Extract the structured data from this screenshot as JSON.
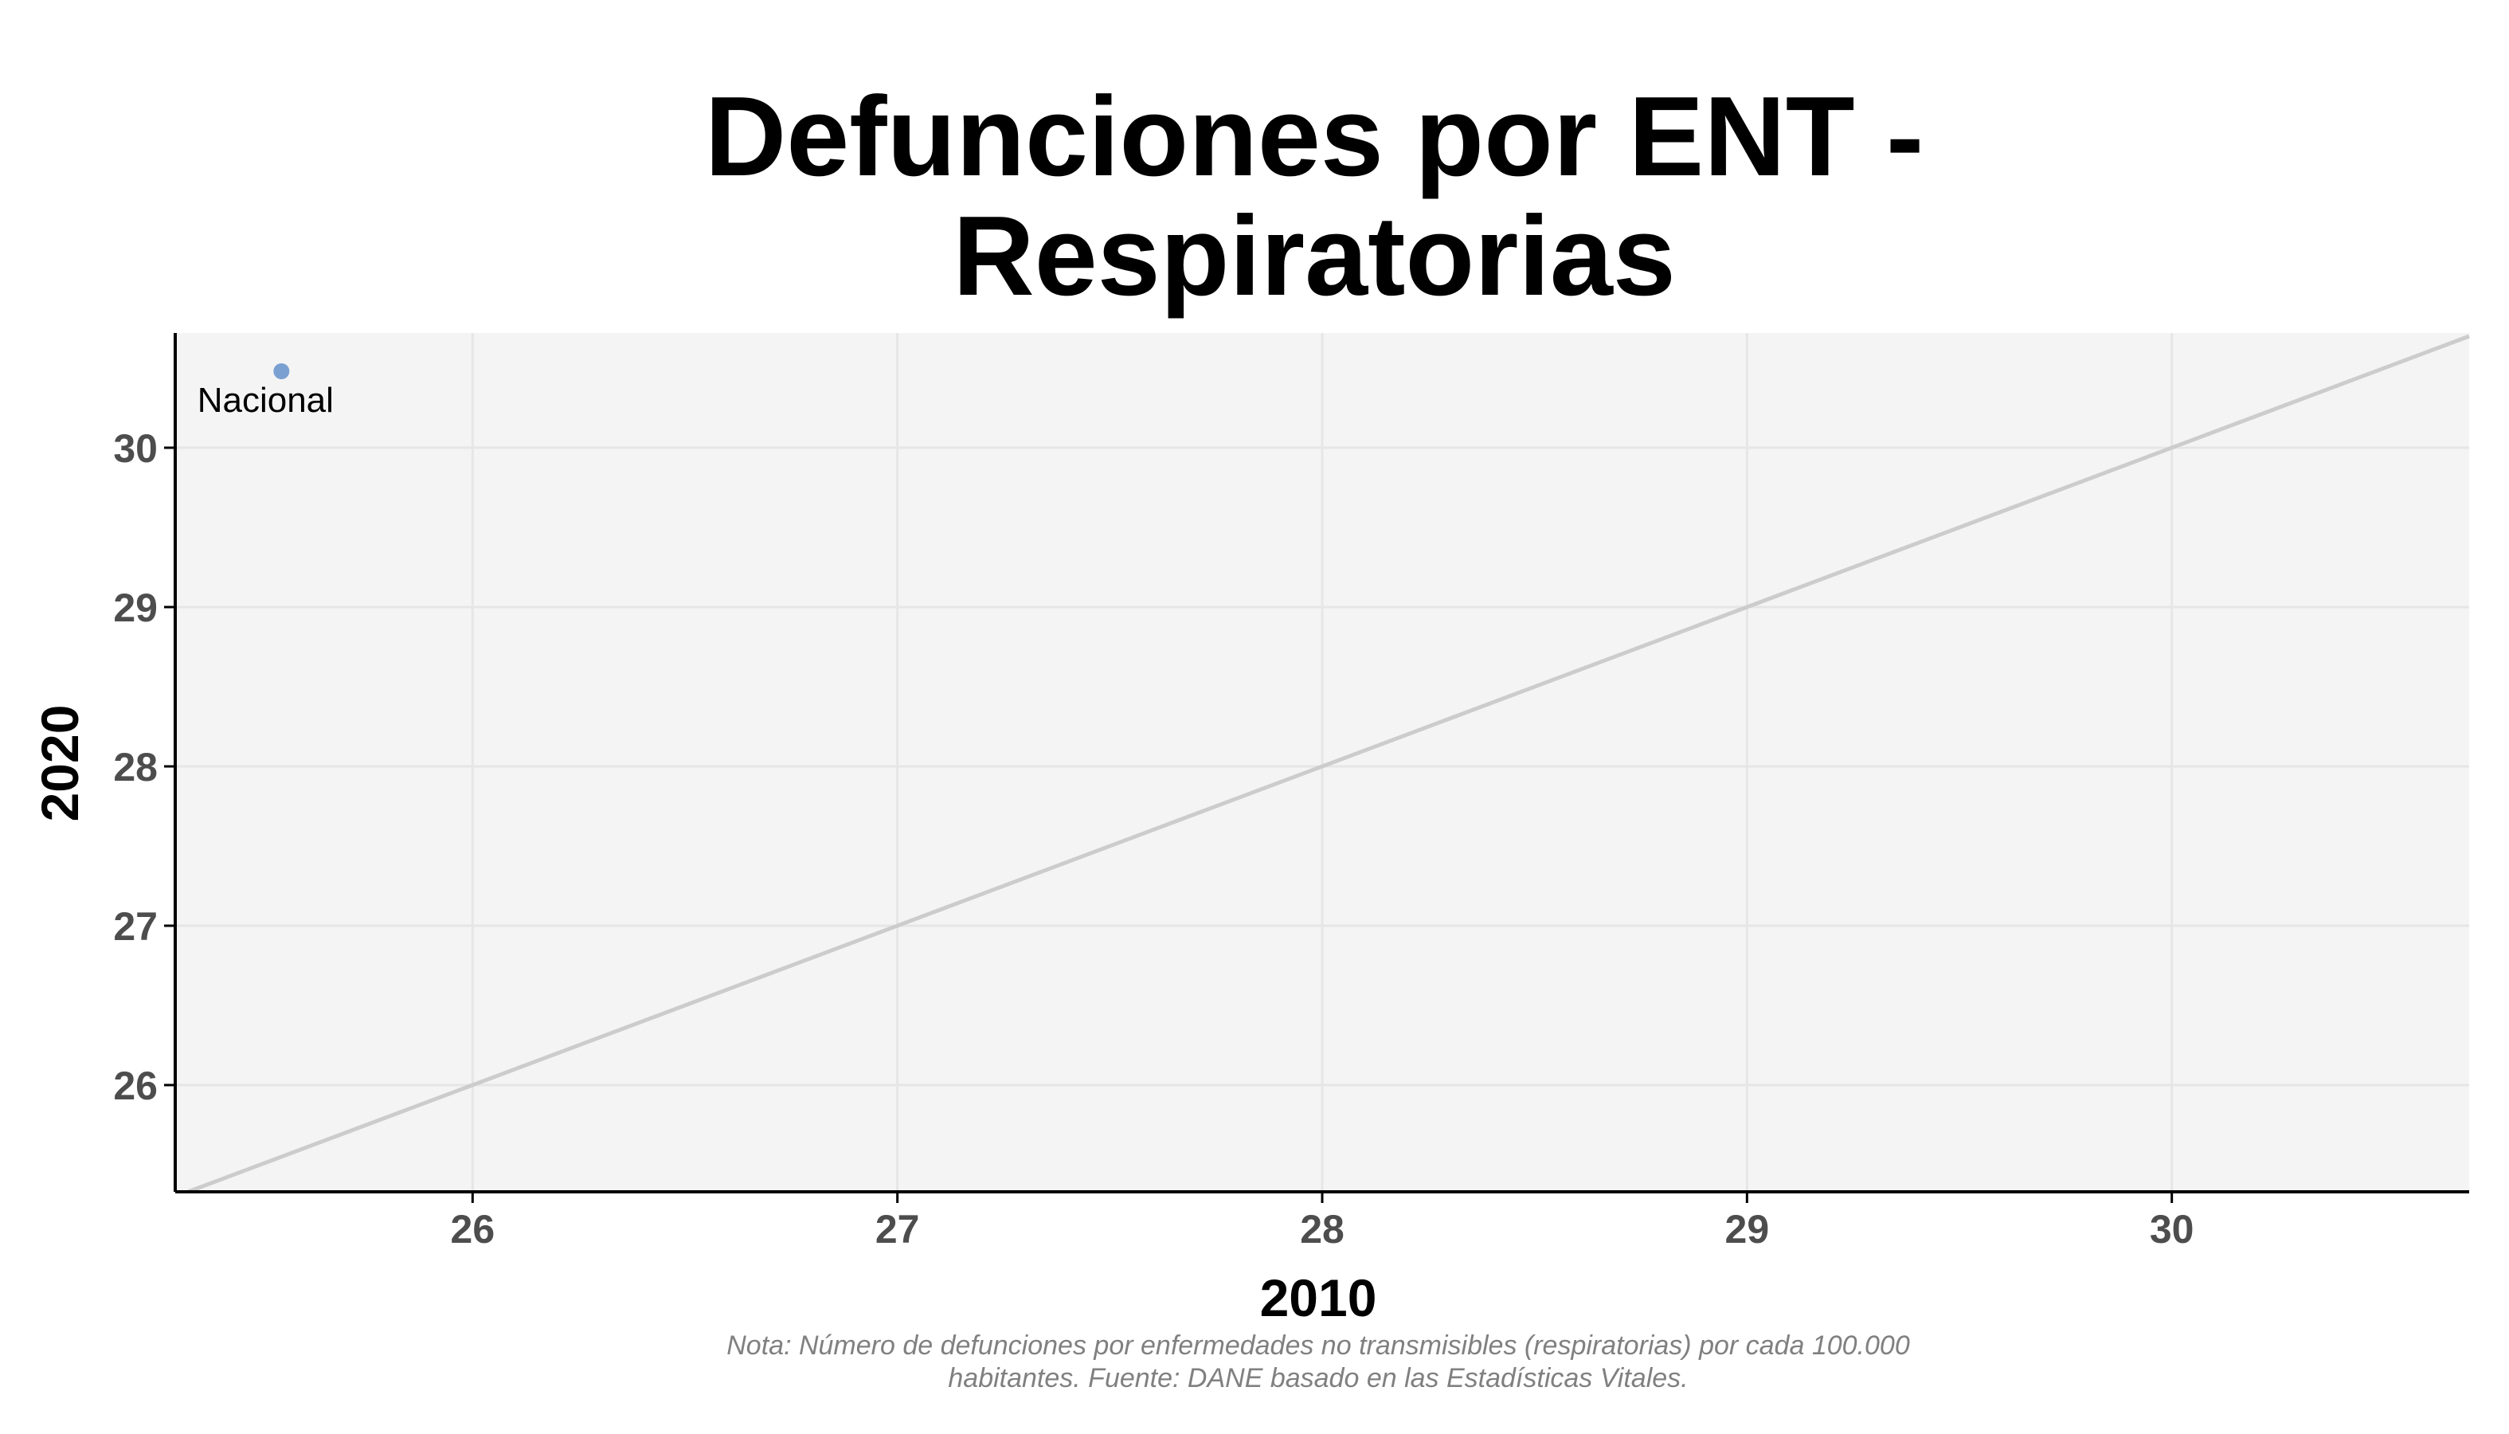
{
  "chart_data": {
    "type": "scatter",
    "title_lines": [
      "Defunciones por ENT -",
      "Respiratorias"
    ],
    "xlabel": "2010",
    "ylabel": "2020",
    "xlim": [
      25.3,
      30.7
    ],
    "ylim": [
      25.33,
      30.72
    ],
    "x_ticks": [
      26,
      27,
      28,
      29,
      30
    ],
    "y_ticks": [
      26,
      27,
      28,
      29,
      30
    ],
    "grid": true,
    "reference_line": {
      "type": "identity",
      "slope": 1,
      "intercept": 0
    },
    "points": [
      {
        "label": "Nacional",
        "x": 25.55,
        "y": 30.48
      }
    ],
    "caption_lines": [
      "Nota: Número de defunciones por enfermedades no transmisibles (respiratorias) por cada 100.000",
      "habitantes. Fuente: DANE basado en las Estadísticas Vitales."
    ],
    "colors": {
      "panel_background": "#f4f4f4",
      "grid": "#e6e6e6",
      "point": "#7aa0d2",
      "reference_line": "#cccccc",
      "axis": "#000000",
      "tick_text": "#4d4d4d",
      "caption_text": "#808080"
    }
  }
}
